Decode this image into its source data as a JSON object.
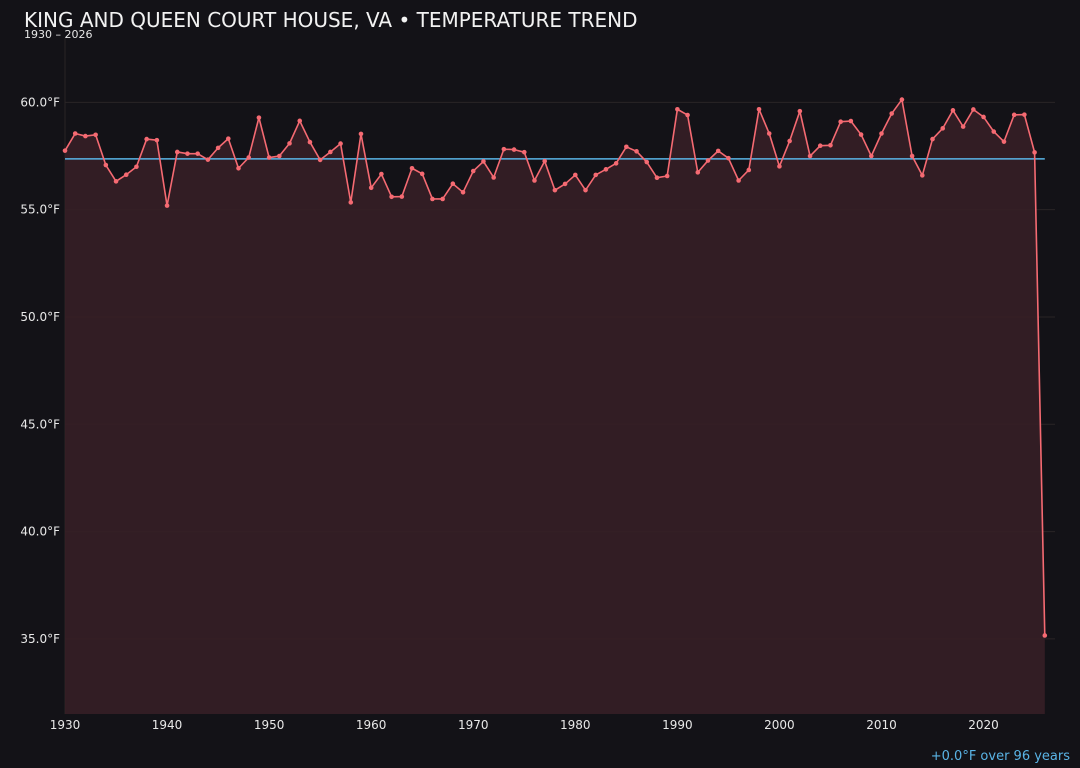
{
  "chart_data": {
    "type": "line",
    "title": "KING AND QUEEN COURT HOUSE, VA • TEMPERATURE TREND",
    "subtitle": "1930 – 2026",
    "xlabel": "",
    "ylabel": "",
    "xlim": [
      1930,
      2027
    ],
    "ylim": [
      31.5,
      63
    ],
    "x_ticks": [
      1930,
      1940,
      1950,
      1960,
      1970,
      1980,
      1990,
      2000,
      2010,
      2020
    ],
    "y_ticks": [
      35,
      40,
      45,
      50,
      55,
      60
    ],
    "y_tick_labels": [
      "35.0°F",
      "40.0°F",
      "45.0°F",
      "50.0°F",
      "55.0°F",
      "60.0°F"
    ],
    "grid": true,
    "series": [
      {
        "x": [
          1930,
          1931,
          1932,
          1933,
          1934,
          1935,
          1936,
          1937,
          1938,
          1939,
          1940,
          1941,
          1942,
          1943,
          1944,
          1945,
          1946,
          1947,
          1948,
          1949,
          1950,
          1951,
          1952,
          1953,
          1954,
          1955,
          1956,
          1957,
          1958,
          1959,
          1960,
          1961,
          1962,
          1963,
          1964,
          1965,
          1966,
          1967,
          1968,
          1969,
          1970,
          1971,
          1972,
          1973,
          1974,
          1975,
          1976,
          1977,
          1978,
          1979,
          1980,
          1981,
          1982,
          1983,
          1984,
          1985,
          1986,
          1987,
          1988,
          1989,
          1990,
          1991,
          1992,
          1993,
          1994,
          1995,
          1996,
          1997,
          1998,
          1999,
          2000,
          2001,
          2002,
          2003,
          2004,
          2005,
          2006,
          2007,
          2008,
          2009,
          2010,
          2011,
          2012,
          2013,
          2014,
          2015,
          2016,
          2017,
          2018,
          2019,
          2020,
          2021,
          2022,
          2023,
          2024,
          2025,
          2026
        ],
        "values": [
          57.75,
          58.55,
          58.43,
          58.49,
          57.08,
          56.32,
          56.63,
          57.0,
          58.29,
          58.24,
          55.19,
          57.69,
          57.61,
          57.61,
          57.33,
          57.88,
          58.31,
          56.93,
          57.43,
          59.29,
          57.43,
          57.5,
          58.09,
          59.14,
          58.15,
          57.32,
          57.69,
          58.08,
          55.34,
          58.53,
          56.02,
          56.66,
          55.6,
          55.61,
          56.93,
          56.67,
          55.5,
          55.5,
          56.21,
          55.81,
          56.8,
          57.25,
          56.5,
          57.82,
          57.8,
          57.68,
          56.36,
          57.26,
          55.91,
          56.2,
          56.62,
          55.91,
          56.62,
          56.88,
          57.16,
          57.93,
          57.72,
          57.22,
          56.49,
          56.57,
          59.68,
          59.41,
          56.74,
          57.29,
          57.74,
          57.4,
          56.36,
          56.85,
          59.68,
          58.55,
          57.02,
          58.2,
          59.59,
          57.5,
          57.98,
          58.0,
          59.1,
          59.13,
          58.5,
          57.5,
          58.55,
          59.48,
          60.13,
          57.5,
          56.6,
          58.29,
          58.79,
          59.63,
          58.87,
          59.67,
          59.32,
          58.64,
          58.17,
          59.42,
          59.43,
          57.67,
          35.16
        ]
      }
    ],
    "trend_value": 57.37,
    "trend_label": "+0.0°F over 96 years",
    "colors": {
      "background": "#131217",
      "line": "#f56a72",
      "fill": "#361f26",
      "trend": "#5ab4e6",
      "grid": "#2a2426",
      "text": "#e8e8e8"
    }
  }
}
